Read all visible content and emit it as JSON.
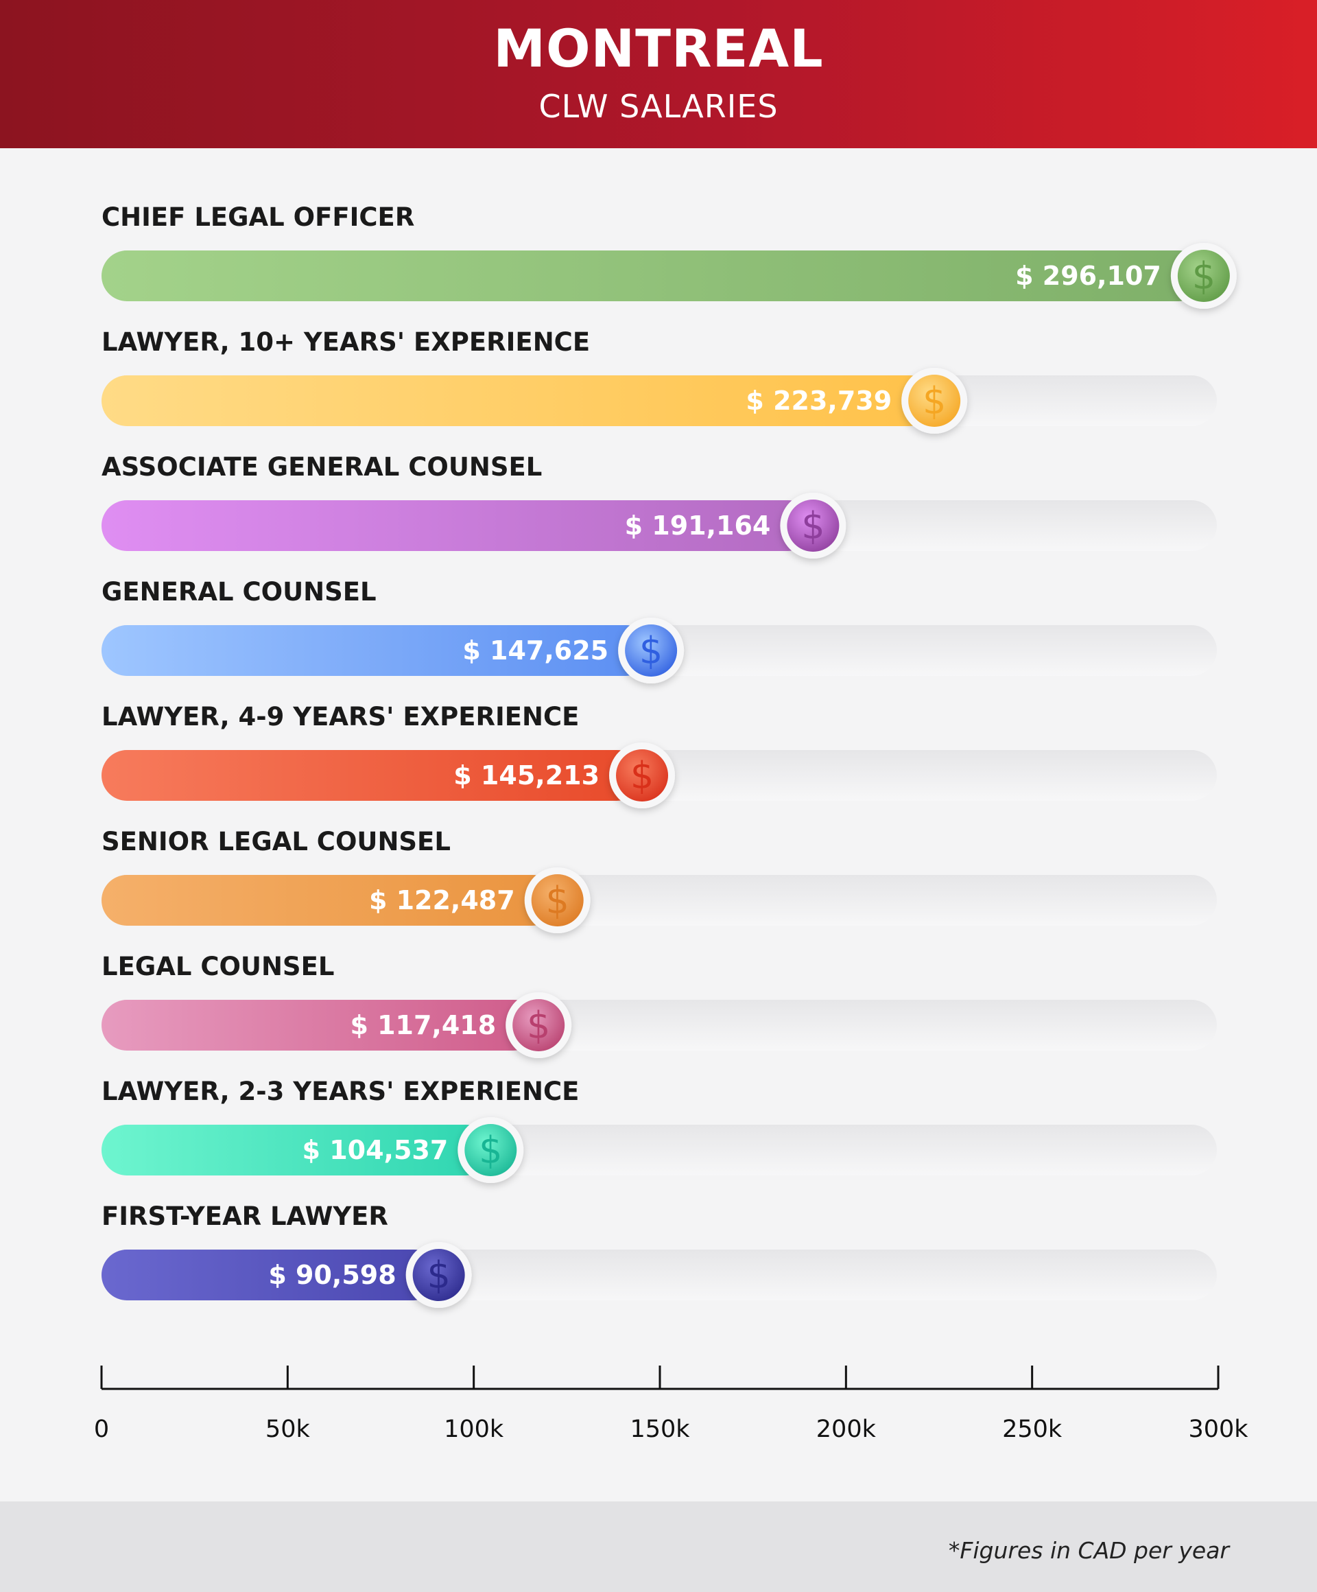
{
  "header": {
    "title": "MONTREAL",
    "subtitle": "CLW SALARIES"
  },
  "footer": {
    "note": "*Figures in CAD per year"
  },
  "icon": "dollar-icon",
  "chart_data": {
    "type": "bar",
    "orientation": "horizontal",
    "xlim": [
      0,
      300000
    ],
    "xticks": [
      0,
      50000,
      100000,
      150000,
      200000,
      250000,
      300000
    ],
    "xtick_labels": [
      "0",
      "50k",
      "100k",
      "150k",
      "200k",
      "250k",
      "300k"
    ],
    "categories": [
      "CHIEF LEGAL OFFICER",
      "LAWYER, 10+ YEARS' EXPERIENCE",
      "ASSOCIATE GENERAL COUNSEL",
      "GENERAL COUNSEL",
      "LAWYER, 4-9 YEARS' EXPERIENCE",
      "SENIOR LEGAL COUNSEL",
      "LEGAL COUNSEL",
      "LAWYER, 2-3 YEARS' EXPERIENCE",
      "FIRST-YEAR LAWYER"
    ],
    "values": [
      296107,
      223739,
      191164,
      147625,
      145213,
      122487,
      117418,
      104537,
      90598
    ],
    "value_labels": [
      "$ 296,107",
      "$ 223,739",
      "$ 191,164",
      "$ 147,625",
      "$ 145,213",
      "$ 122,487",
      "$ 117,418",
      "$ 104,537",
      "$ 90,598"
    ],
    "colors": [
      [
        "#a3d28a",
        "#7fb069",
        "#5e9a45"
      ],
      [
        "#ffdb86",
        "#ffc24a",
        "#f5a623"
      ],
      [
        "#df8ef2",
        "#b36bc2",
        "#8e3e9c"
      ],
      [
        "#9ec6ff",
        "#5b8ef2",
        "#2f5fe0"
      ],
      [
        "#f77b5c",
        "#e84a2a",
        "#d9301a"
      ],
      [
        "#f5b06a",
        "#ea943f",
        "#dd7a22"
      ],
      [
        "#e79bbf",
        "#cf5c8a",
        "#b8406e"
      ],
      [
        "#6ef5cf",
        "#2ed5b0",
        "#18b594"
      ],
      [
        "#6a68cf",
        "#4a47b0",
        "#2c2a8c"
      ]
    ]
  }
}
